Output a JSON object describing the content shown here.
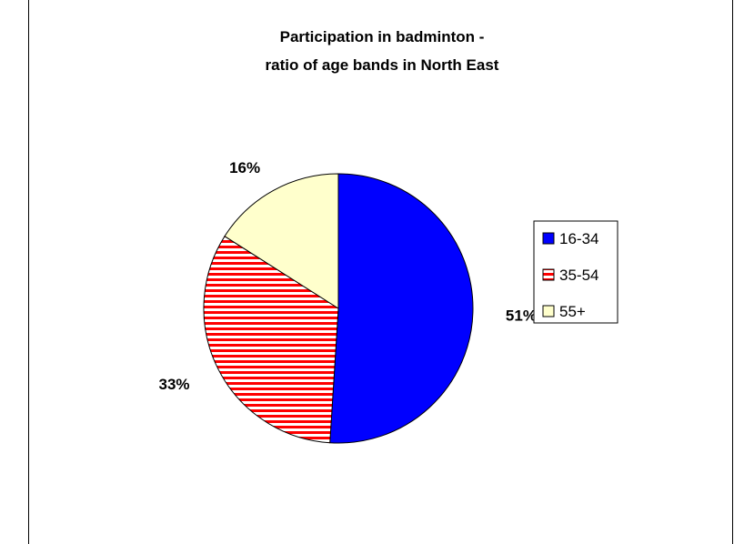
{
  "chart_data": {
    "type": "pie",
    "title_lines": [
      "Participation in badminton -",
      "ratio of age bands in North East"
    ],
    "categories": [
      "16-34",
      "35-54",
      "55+"
    ],
    "values": [
      51,
      33,
      16
    ],
    "data_labels": [
      "51%",
      "33%",
      "16%"
    ],
    "colors": [
      "#0000ff",
      "#ff0000",
      "#ffffcc"
    ],
    "patterns": [
      "solid",
      "horizontal-stripes",
      "solid"
    ],
    "legend_position": "right",
    "start_angle_deg": 0,
    "direction": "clockwise"
  }
}
